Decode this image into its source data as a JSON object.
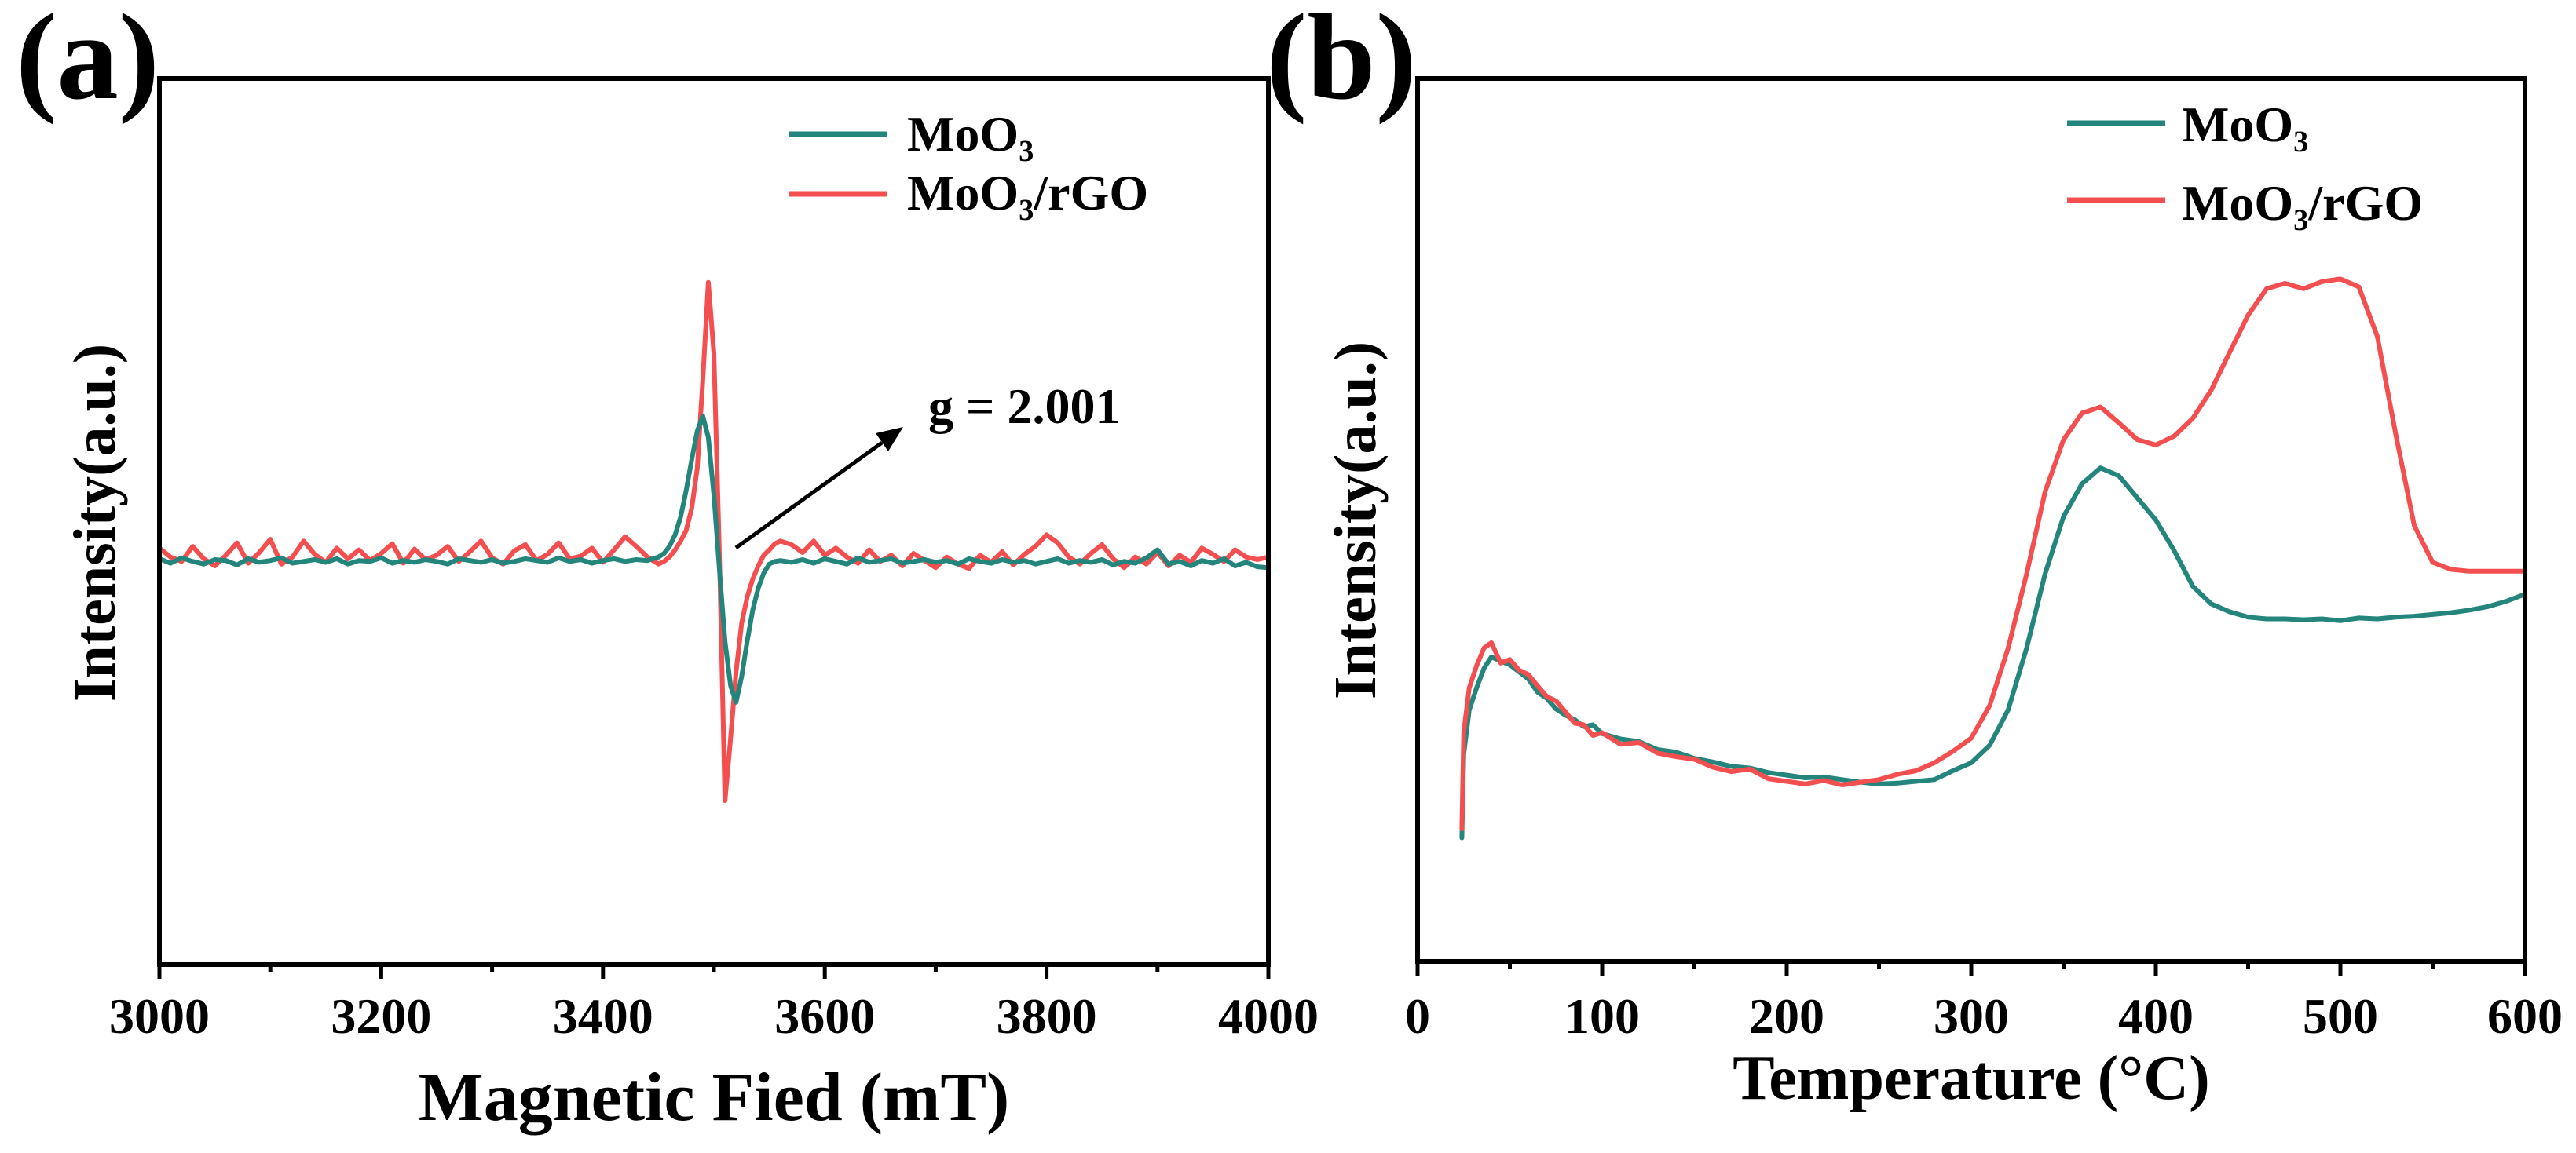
{
  "chart_data": [
    {
      "panel_label": "(a)",
      "type": "line",
      "xlabel": "Magnetic Fied (mT)",
      "ylabel": "Intensity(a.u.)",
      "xlim": [
        3000,
        4000
      ],
      "ylim": [
        0,
        100
      ],
      "xticks": [
        3000,
        3200,
        3400,
        3600,
        3800,
        4000
      ],
      "xtick_labels": [
        "3000",
        "3200",
        "3400",
        "3600",
        "3800",
        "4000"
      ],
      "yticks": [],
      "grid": false,
      "legend": "top-right",
      "annotations": [
        {
          "text": "g = 2.001",
          "arrow": true
        }
      ],
      "x": [
        3000,
        3010,
        3020,
        3030,
        3040,
        3050,
        3060,
        3070,
        3080,
        3090,
        3100,
        3110,
        3120,
        3130,
        3140,
        3150,
        3160,
        3170,
        3180,
        3190,
        3200,
        3210,
        3220,
        3230,
        3240,
        3250,
        3260,
        3270,
        3280,
        3290,
        3300,
        3310,
        3320,
        3330,
        3340,
        3350,
        3360,
        3370,
        3380,
        3390,
        3400,
        3410,
        3420,
        3430,
        3440,
        3445,
        3450,
        3455,
        3460,
        3465,
        3470,
        3475,
        3480,
        3485,
        3490,
        3495,
        3500,
        3505,
        3510,
        3515,
        3520,
        3525,
        3530,
        3535,
        3540,
        3545,
        3550,
        3555,
        3560,
        3570,
        3580,
        3590,
        3600,
        3610,
        3620,
        3630,
        3640,
        3650,
        3660,
        3670,
        3680,
        3690,
        3700,
        3710,
        3720,
        3730,
        3740,
        3750,
        3760,
        3770,
        3780,
        3790,
        3800,
        3810,
        3820,
        3830,
        3840,
        3850,
        3860,
        3870,
        3880,
        3890,
        3900,
        3910,
        3920,
        3930,
        3940,
        3950,
        3960,
        3970,
        3980,
        3990,
        4000
      ],
      "series": [
        {
          "name": "MoO₃",
          "color": "#23857c",
          "values": [
            45.8,
            45.3,
            45.9,
            45.5,
            45.2,
            45.7,
            45.6,
            45.1,
            45.8,
            45.4,
            45.6,
            45.9,
            45.3,
            45.5,
            45.7,
            45.4,
            45.8,
            45.2,
            45.6,
            45.5,
            45.9,
            45.3,
            45.6,
            45.4,
            45.7,
            45.5,
            45.2,
            45.8,
            45.6,
            45.4,
            45.7,
            45.3,
            45.5,
            45.8,
            45.6,
            45.4,
            45.9,
            45.5,
            45.7,
            45.3,
            45.6,
            45.8,
            45.5,
            45.7,
            45.6,
            45.8,
            46.0,
            46.4,
            47.2,
            48.5,
            50.5,
            53.5,
            57.0,
            60.2,
            61.9,
            59.5,
            53.0,
            44.5,
            36.5,
            31.5,
            29.6,
            32.5,
            36.5,
            40.0,
            42.5,
            44.2,
            45.2,
            45.5,
            45.6,
            45.4,
            45.7,
            45.3,
            45.8,
            45.5,
            45.2,
            45.9,
            45.4,
            45.6,
            45.8,
            45.3,
            45.5,
            45.7,
            45.4,
            45.6,
            45.2,
            45.8,
            45.5,
            45.3,
            45.7,
            45.4,
            45.6,
            45.2,
            45.5,
            45.8,
            45.3,
            45.6,
            45.4,
            45.7,
            45.1,
            45.5,
            45.3,
            45.9,
            46.8,
            45.2,
            45.5,
            45.0,
            45.6,
            45.3,
            45.8,
            45.0,
            45.4,
            44.9,
            44.8
          ]
        },
        {
          "name": "MoO₃/rGO",
          "color": "#f44f50",
          "values": [
            47.0,
            46.0,
            45.5,
            47.2,
            45.8,
            45.0,
            46.2,
            47.6,
            45.3,
            46.5,
            48.0,
            45.2,
            46.0,
            47.8,
            46.3,
            45.4,
            47.0,
            45.8,
            46.8,
            45.6,
            46.4,
            47.5,
            45.3,
            46.9,
            45.7,
            46.2,
            47.2,
            45.5,
            46.6,
            47.8,
            45.9,
            45.2,
            46.7,
            47.4,
            45.6,
            46.3,
            47.6,
            45.8,
            46.1,
            47.0,
            45.4,
            46.8,
            48.3,
            47.2,
            46.0,
            45.6,
            45.2,
            45.5,
            46.0,
            46.8,
            47.8,
            49.0,
            51.5,
            56.0,
            66.0,
            77.0,
            69.0,
            46.0,
            18.5,
            25.5,
            33.0,
            38.5,
            41.5,
            43.5,
            45.0,
            46.2,
            46.8,
            47.5,
            47.8,
            47.4,
            46.5,
            47.8,
            46.2,
            47.0,
            46.0,
            45.3,
            46.8,
            45.5,
            46.2,
            45.0,
            46.4,
            45.6,
            44.8,
            46.0,
            45.2,
            44.7,
            46.2,
            45.4,
            46.6,
            45.1,
            46.3,
            47.2,
            48.5,
            47.6,
            46.0,
            45.2,
            46.4,
            47.4,
            45.8,
            44.8,
            46.0,
            45.2,
            46.5,
            45.0,
            46.2,
            45.4,
            47.0,
            46.3,
            45.5,
            46.8,
            46.0,
            45.7,
            46.0
          ]
        }
      ]
    },
    {
      "panel_label": "(b)",
      "type": "line",
      "xlabel": "Temperature (°C)",
      "ylabel": "Intensity(a.u.)",
      "xlim": [
        0,
        600
      ],
      "ylim": [
        0,
        100
      ],
      "xticks": [
        0,
        100,
        200,
        300,
        400,
        500,
        600
      ],
      "xtick_labels": [
        "0",
        "100",
        "200",
        "300",
        "400",
        "500",
        "600"
      ],
      "yticks": [],
      "grid": false,
      "legend": "top-right",
      "x": [
        24,
        25,
        28,
        32,
        36,
        40,
        45,
        50,
        55,
        60,
        65,
        70,
        75,
        80,
        85,
        90,
        95,
        100,
        110,
        120,
        130,
        140,
        150,
        160,
        170,
        180,
        190,
        200,
        210,
        220,
        230,
        240,
        250,
        260,
        270,
        280,
        290,
        300,
        310,
        320,
        330,
        340,
        350,
        360,
        370,
        380,
        390,
        400,
        410,
        420,
        430,
        440,
        450,
        460,
        470,
        480,
        490,
        500,
        510,
        520,
        530,
        540,
        550,
        560,
        570,
        580,
        590,
        600
      ],
      "series": [
        {
          "name": "MoO₃",
          "color": "#23857c",
          "values": [
            14.0,
            23.5,
            28.5,
            31.0,
            33.2,
            34.5,
            34.0,
            33.6,
            32.8,
            32.0,
            30.5,
            29.8,
            28.6,
            27.9,
            27.4,
            26.6,
            26.8,
            25.8,
            25.2,
            24.9,
            24.0,
            23.7,
            23.0,
            22.6,
            22.1,
            21.9,
            21.4,
            21.1,
            20.8,
            20.9,
            20.6,
            20.3,
            20.1,
            20.2,
            20.4,
            20.6,
            21.6,
            22.5,
            24.5,
            28.5,
            35.5,
            43.9,
            50.4,
            54.1,
            55.9,
            55.0,
            52.5,
            50.0,
            46.5,
            42.5,
            40.5,
            39.6,
            39.0,
            38.8,
            38.8,
            38.7,
            38.8,
            38.6,
            38.9,
            38.8,
            39.0,
            39.1,
            39.3,
            39.5,
            39.8,
            40.2,
            40.8,
            41.6
          ]
        },
        {
          "name": "MoO₃/rGO",
          "color": "#f44f50",
          "values": [
            15.0,
            26.0,
            31.0,
            33.5,
            35.5,
            36.1,
            33.8,
            34.2,
            33.0,
            32.5,
            31.2,
            30.0,
            29.5,
            28.3,
            27.0,
            26.8,
            25.6,
            25.9,
            24.6,
            24.8,
            23.6,
            23.2,
            22.9,
            22.0,
            21.5,
            21.8,
            20.7,
            20.4,
            20.1,
            20.5,
            20.0,
            20.3,
            20.6,
            21.2,
            21.6,
            22.5,
            23.8,
            25.3,
            29.0,
            35.5,
            43.9,
            53.2,
            59.1,
            62.1,
            62.8,
            61.0,
            59.1,
            58.5,
            59.5,
            61.5,
            64.7,
            69.0,
            73.2,
            76.2,
            76.8,
            76.2,
            77.0,
            77.3,
            76.4,
            70.8,
            59.7,
            49.4,
            45.2,
            44.4,
            44.2,
            44.2,
            44.2,
            44.2
          ]
        }
      ]
    }
  ]
}
